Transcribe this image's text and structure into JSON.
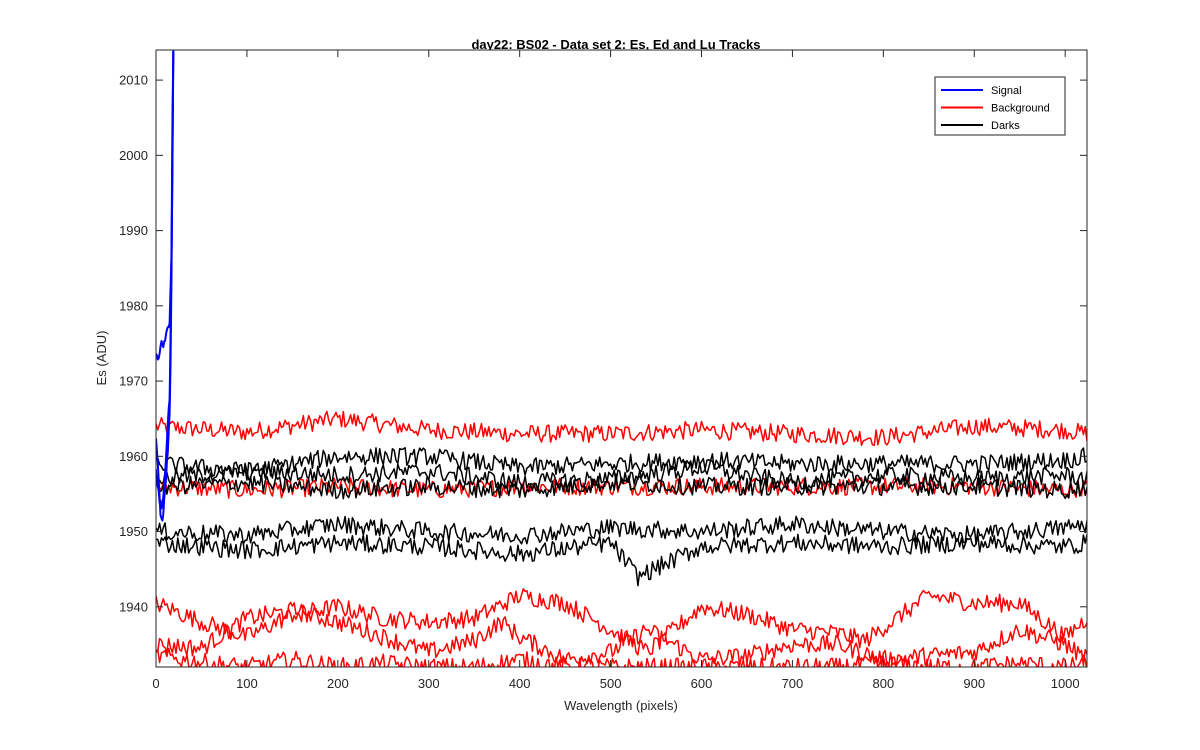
{
  "chart_data": {
    "type": "line",
    "title": "day22: BS02 - Data set 2: Es, Ed and Lu Tracks",
    "xlabel": "Wavelength (pixels)",
    "ylabel": "Es (ADU)",
    "xlim": [
      0,
      1024
    ],
    "ylim": [
      1932,
      2014
    ],
    "xticks": [
      0,
      100,
      200,
      300,
      400,
      500,
      600,
      700,
      800,
      900,
      1000
    ],
    "yticks": [
      1940,
      1950,
      1960,
      1970,
      1980,
      1990,
      2000,
      2010
    ],
    "grid": false,
    "legend_position": "top-right",
    "legend": [
      {
        "label": "Signal",
        "color": "#0000ff"
      },
      {
        "label": "Background",
        "color": "#ff0000"
      },
      {
        "label": "Darks",
        "color": "#000000"
      }
    ],
    "series": [
      {
        "name": "Signal",
        "color": "#0000ff",
        "points": [
          [
            0,
            1974
          ],
          [
            3,
            1973
          ],
          [
            6,
            1975
          ],
          [
            9,
            1975
          ],
          [
            11,
            1976
          ],
          [
            13,
            1977
          ],
          [
            15,
            1978
          ],
          [
            17,
            1986
          ],
          [
            18,
            1998
          ],
          [
            19,
            2014
          ]
        ]
      },
      {
        "name": "Signal",
        "color": "#0000ff",
        "points": [
          [
            0,
            1962
          ],
          [
            3,
            1957
          ],
          [
            5,
            1952
          ],
          [
            7,
            1951
          ],
          [
            9,
            1954
          ],
          [
            11,
            1957
          ],
          [
            13,
            1961
          ],
          [
            15,
            1966
          ],
          [
            16,
            1972
          ],
          [
            17,
            1984
          ],
          [
            18,
            2000
          ],
          [
            19,
            2014
          ]
        ]
      },
      {
        "name": "Signal",
        "color": "#0000ff",
        "points": [
          [
            0,
            1958
          ],
          [
            3,
            1955
          ],
          [
            6,
            1953
          ],
          [
            9,
            1956
          ],
          [
            11,
            1960
          ],
          [
            13,
            1964
          ],
          [
            15,
            1968
          ],
          [
            16,
            1975
          ],
          [
            17,
            1988
          ],
          [
            18,
            2004
          ],
          [
            19,
            2014
          ]
        ]
      },
      {
        "name": "Background",
        "color": "#ff0000",
        "points": [
          [
            0,
            1964
          ],
          [
            100,
            1963.2
          ],
          [
            200,
            1965
          ],
          [
            300,
            1963.5
          ],
          [
            400,
            1963
          ],
          [
            500,
            1963
          ],
          [
            600,
            1963.5
          ],
          [
            700,
            1963
          ],
          [
            800,
            1962.5
          ],
          [
            900,
            1964
          ],
          [
            1000,
            1963.5
          ],
          [
            1024,
            1963
          ]
        ]
      },
      {
        "name": "Background",
        "color": "#ff0000",
        "points": [
          [
            0,
            1956
          ],
          [
            100,
            1955.5
          ],
          [
            200,
            1956
          ],
          [
            300,
            1955.5
          ],
          [
            400,
            1956
          ],
          [
            500,
            1956
          ],
          [
            600,
            1956
          ],
          [
            700,
            1956
          ],
          [
            800,
            1956
          ],
          [
            900,
            1956
          ],
          [
            1000,
            1955.5
          ],
          [
            1024,
            1956
          ]
        ]
      },
      {
        "name": "Background",
        "color": "#ff0000",
        "points": [
          [
            0,
            1940.5
          ],
          [
            50,
            1938
          ],
          [
            100,
            1936
          ],
          [
            150,
            1939
          ],
          [
            200,
            1940
          ],
          [
            250,
            1938.5
          ],
          [
            300,
            1938
          ],
          [
            350,
            1938.5
          ],
          [
            400,
            1941.5
          ],
          [
            450,
            1940.5
          ],
          [
            500,
            1937
          ],
          [
            540,
            1934
          ],
          [
            600,
            1940
          ],
          [
            650,
            1939
          ],
          [
            700,
            1937
          ],
          [
            750,
            1936.5
          ],
          [
            780,
            1935.5
          ],
          [
            850,
            1941.5
          ],
          [
            900,
            1940.5
          ],
          [
            950,
            1940.5
          ],
          [
            1000,
            1936
          ],
          [
            1024,
            1938.5
          ]
        ]
      },
      {
        "name": "Background",
        "color": "#ff0000",
        "points": [
          [
            0,
            1935
          ],
          [
            50,
            1934.5
          ],
          [
            100,
            1938.5
          ],
          [
            150,
            1939.5
          ],
          [
            200,
            1938
          ],
          [
            250,
            1936
          ],
          [
            300,
            1934
          ],
          [
            350,
            1935.5
          ],
          [
            380,
            1938
          ],
          [
            400,
            1936
          ],
          [
            450,
            1933
          ],
          [
            500,
            1934
          ],
          [
            540,
            1937
          ],
          [
            600,
            1933
          ],
          [
            650,
            1933.5
          ],
          [
            700,
            1935
          ],
          [
            750,
            1935
          ],
          [
            800,
            1933
          ],
          [
            850,
            1933.5
          ],
          [
            900,
            1934
          ],
          [
            950,
            1937
          ],
          [
            1000,
            1935
          ],
          [
            1024,
            1933
          ]
        ]
      },
      {
        "name": "Background",
        "color": "#ff0000",
        "points": [
          [
            0,
            1933.5
          ],
          [
            60,
            1932.5
          ],
          [
            100,
            1932
          ],
          [
            150,
            1933
          ],
          [
            200,
            1932
          ],
          [
            250,
            1932.5
          ],
          [
            300,
            1932
          ],
          [
            350,
            1932
          ],
          [
            400,
            1933
          ],
          [
            450,
            1932
          ],
          [
            500,
            1932
          ],
          [
            550,
            1932
          ],
          [
            600,
            1932
          ],
          [
            650,
            1932
          ],
          [
            700,
            1932
          ],
          [
            750,
            1932
          ],
          [
            800,
            1932.5
          ],
          [
            850,
            1932
          ],
          [
            900,
            1932
          ],
          [
            950,
            1932.5
          ],
          [
            1000,
            1932
          ],
          [
            1024,
            1932.5
          ]
        ]
      },
      {
        "name": "Darks",
        "color": "#000000",
        "points": [
          [
            0,
            1959
          ],
          [
            100,
            1958
          ],
          [
            200,
            1960
          ],
          [
            300,
            1960
          ],
          [
            400,
            1958.5
          ],
          [
            500,
            1959
          ],
          [
            600,
            1959.5
          ],
          [
            700,
            1959
          ],
          [
            800,
            1959
          ],
          [
            900,
            1959
          ],
          [
            1000,
            1959.5
          ],
          [
            1024,
            1960
          ]
        ]
      },
      {
        "name": "Darks",
        "color": "#000000",
        "points": [
          [
            0,
            1957
          ],
          [
            100,
            1958
          ],
          [
            200,
            1957.5
          ],
          [
            300,
            1958
          ],
          [
            400,
            1956.5
          ],
          [
            500,
            1957
          ],
          [
            600,
            1958.5
          ],
          [
            700,
            1956.5
          ],
          [
            800,
            1957.5
          ],
          [
            900,
            1957
          ],
          [
            1000,
            1957.5
          ],
          [
            1024,
            1957
          ]
        ]
      },
      {
        "name": "Darks",
        "color": "#000000",
        "points": [
          [
            0,
            1956
          ],
          [
            100,
            1956.5
          ],
          [
            200,
            1955.5
          ],
          [
            300,
            1956
          ],
          [
            400,
            1955.5
          ],
          [
            500,
            1956.5
          ],
          [
            600,
            1956
          ],
          [
            700,
            1956
          ],
          [
            800,
            1956
          ],
          [
            900,
            1956
          ],
          [
            1000,
            1955.5
          ],
          [
            1024,
            1956
          ]
        ]
      },
      {
        "name": "Darks",
        "color": "#000000",
        "points": [
          [
            0,
            1950
          ],
          [
            100,
            1949.5
          ],
          [
            200,
            1951
          ],
          [
            300,
            1950
          ],
          [
            400,
            1949.5
          ],
          [
            500,
            1950.5
          ],
          [
            600,
            1950
          ],
          [
            700,
            1951
          ],
          [
            800,
            1950
          ],
          [
            900,
            1949.5
          ],
          [
            1000,
            1950.5
          ],
          [
            1024,
            1951
          ]
        ]
      },
      {
        "name": "Darks",
        "color": "#000000",
        "points": [
          [
            0,
            1948.5
          ],
          [
            100,
            1947.5
          ],
          [
            200,
            1948.5
          ],
          [
            300,
            1948
          ],
          [
            400,
            1947
          ],
          [
            500,
            1948.5
          ],
          [
            530,
            1944
          ],
          [
            600,
            1948
          ],
          [
            700,
            1948.5
          ],
          [
            800,
            1948
          ],
          [
            900,
            1948.5
          ],
          [
            1000,
            1948
          ],
          [
            1024,
            1948.5
          ]
        ]
      }
    ]
  }
}
